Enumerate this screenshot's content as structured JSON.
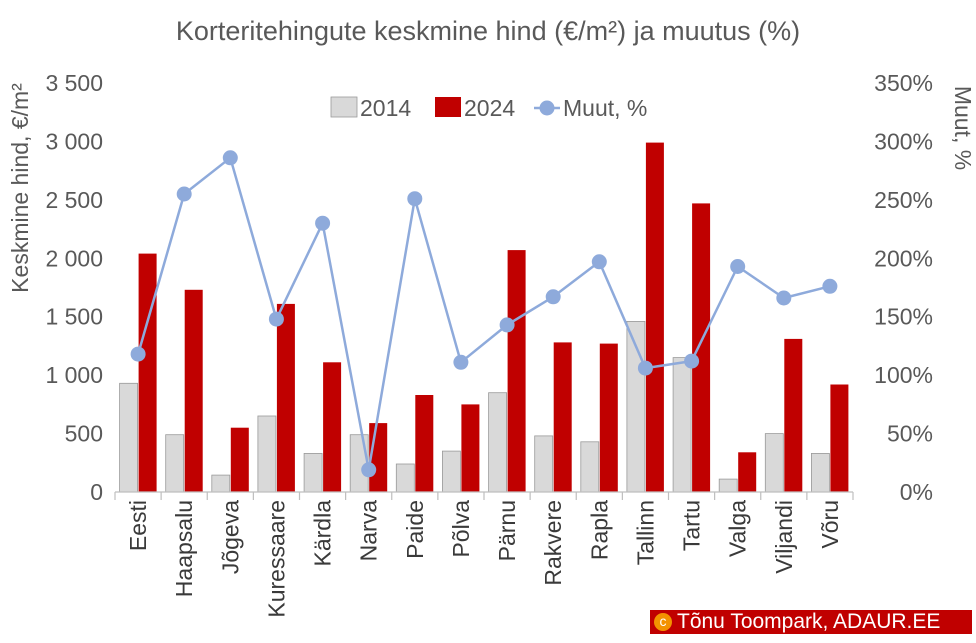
{
  "chart_data": {
    "type": "bar",
    "title": "Korteritehingute keskmine hind (€/m²) ja muutus (%)",
    "ylabel": "Keskmine hind, €/m²",
    "y2label": "Muut, %",
    "ylim": [
      0,
      3500
    ],
    "y2lim": [
      0,
      350
    ],
    "yticks": [
      "0",
      "500",
      "1 000",
      "1 500",
      "2 000",
      "2 500",
      "3 000",
      "3 500"
    ],
    "y2ticks": [
      "0%",
      "50%",
      "100%",
      "150%",
      "200%",
      "250%",
      "300%",
      "350%"
    ],
    "grid": false,
    "legend_position": "top-center",
    "categories": [
      "Eesti",
      "Haapsalu",
      "Jõgeva",
      "Kuressaare",
      "Kärdla",
      "Narva",
      "Paide",
      "Põlva",
      "Pärnu",
      "Rakvere",
      "Rapla",
      "Tallinn",
      "Tartu",
      "Valga",
      "Viljandi",
      "Võru"
    ],
    "series": [
      {
        "name": "2014",
        "type": "bar",
        "axis": "left",
        "color": "#d9d9d9",
        "values": [
          930,
          490,
          145,
          650,
          330,
          490,
          240,
          350,
          850,
          480,
          430,
          1460,
          1150,
          110,
          500,
          330
        ]
      },
      {
        "name": "2024",
        "type": "bar",
        "axis": "left",
        "color": "#c00000",
        "values": [
          2040,
          1730,
          550,
          1610,
          1110,
          590,
          830,
          750,
          2070,
          1280,
          1270,
          2990,
          2470,
          340,
          1310,
          920
        ]
      },
      {
        "name": "Muut, %",
        "type": "line",
        "axis": "right",
        "color": "#8eaadb",
        "values": [
          118,
          255,
          286,
          148,
          230,
          19,
          251,
          111,
          143,
          167,
          197,
          106,
          112,
          193,
          166,
          176
        ]
      }
    ]
  },
  "copyright": {
    "symbol": "c",
    "text": "Tõnu Toompark, ADAUR.EE"
  }
}
